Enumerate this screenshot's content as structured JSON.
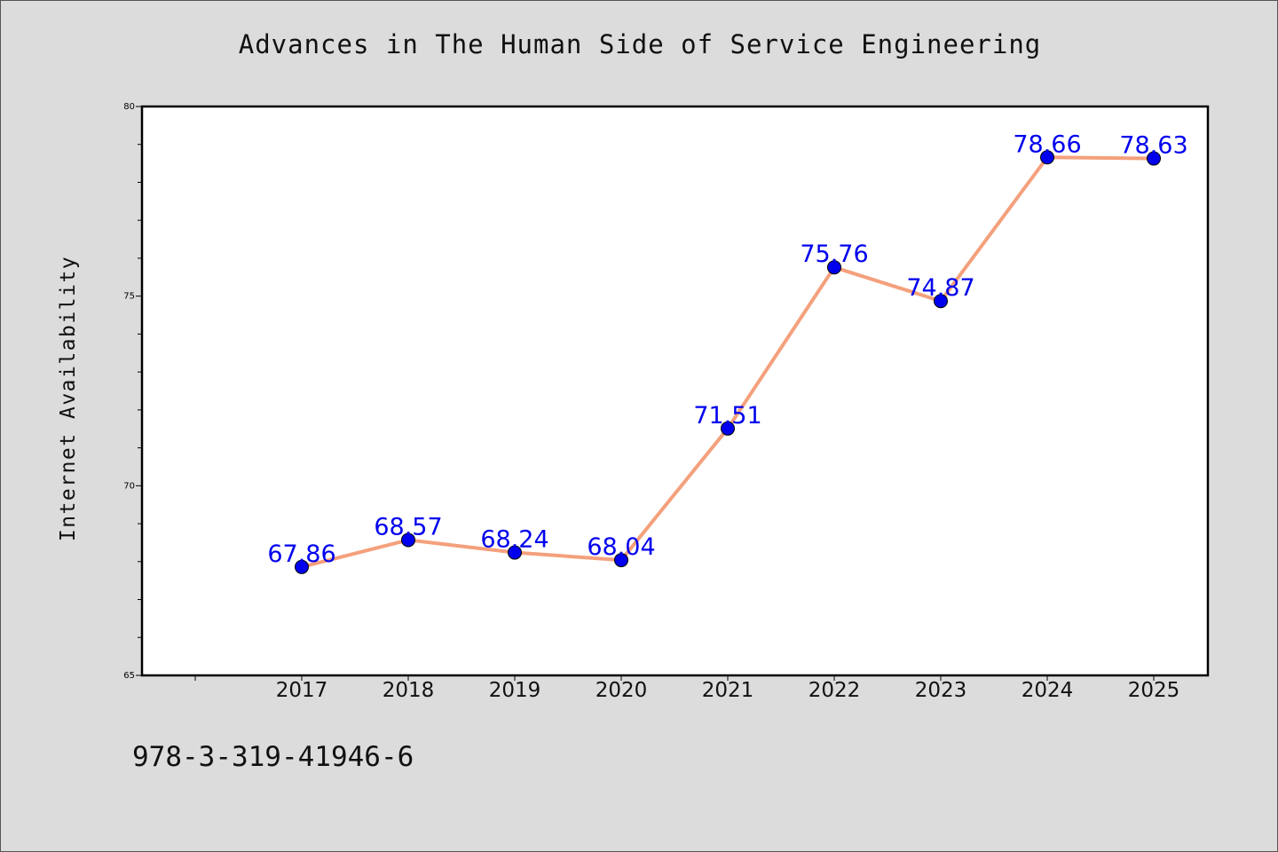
{
  "chart_data": {
    "type": "line",
    "title": "Advances in The Human Side of Service Engineering",
    "xlabel": "",
    "ylabel": "Internet Availability",
    "x": [
      "2017",
      "2018",
      "2019",
      "2020",
      "2021",
      "2022",
      "2023",
      "2024",
      "2025"
    ],
    "series": [
      {
        "values": [
          67.86,
          68.57,
          68.24,
          68.04,
          71.51,
          75.76,
          74.87,
          78.66,
          78.63
        ],
        "data_labels": [
          "67.86",
          "68.57",
          "68.24",
          "68.04",
          "71.51",
          "75.76",
          "74.87",
          "78.66",
          "78.63"
        ],
        "line_color": "#f4a07c",
        "marker_color": "#0000ee"
      }
    ],
    "ylim": [
      65,
      80
    ],
    "y_ticks": [
      "65",
      "70",
      "75",
      "80"
    ],
    "grid": false,
    "legend": "none",
    "label_color": "#0000ee"
  },
  "footer": {
    "isbn": "978-3-319-41946-6"
  }
}
